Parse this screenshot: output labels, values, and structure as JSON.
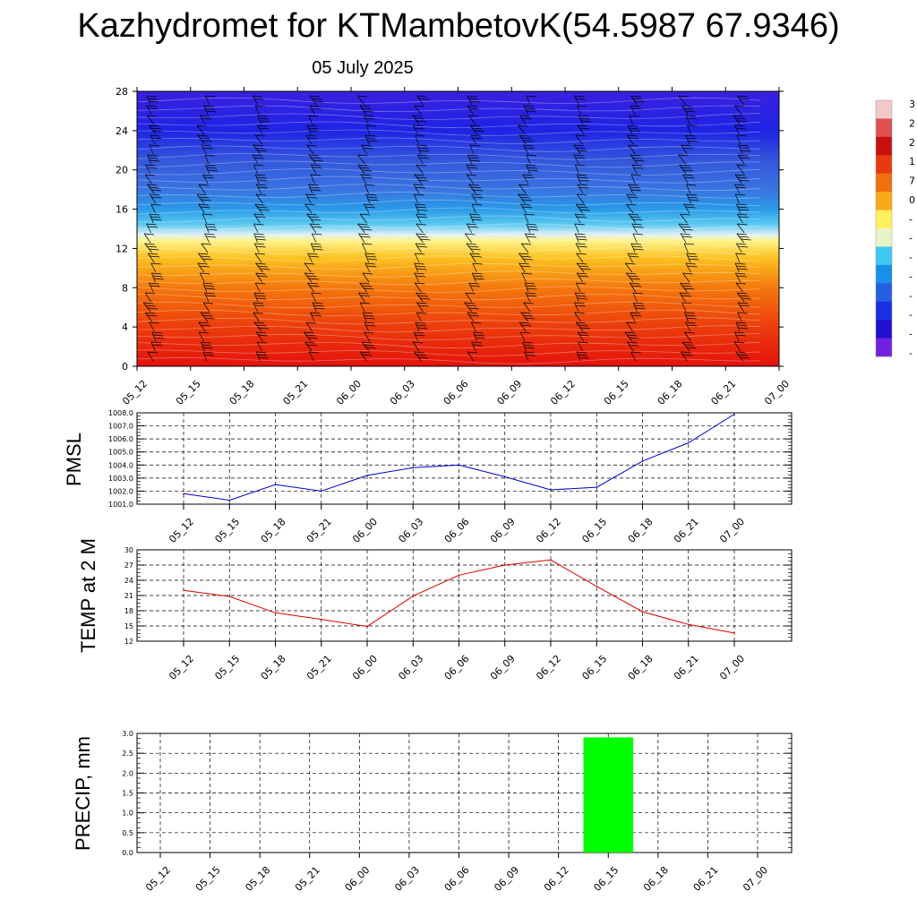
{
  "header": {
    "title": "Kazhydromet for KTMambetovK(54.5987 67.9346)",
    "date": "05 July 2025"
  },
  "chart_data": [
    {
      "type": "heatmap",
      "yticks": [
        0,
        4,
        8,
        12,
        16,
        20,
        24,
        28
      ],
      "ylim": [
        0,
        28
      ],
      "xtick_labels": [
        "05_12",
        "05_15",
        "05_18",
        "05_21",
        "06_00",
        "06_03",
        "06_06",
        "06_09",
        "06_12",
        "06_15",
        "06_18",
        "06_21",
        "07_00"
      ],
      "colorbar_labels": [
        "3",
        "2",
        "2",
        "1",
        "7",
        "0",
        "-",
        "-",
        "-",
        "-",
        "-",
        "-",
        "-",
        "-"
      ],
      "colorbar_colors": [
        "#f3c8c8",
        "#e05050",
        "#c81010",
        "#e83a10",
        "#f07010",
        "#f8a818",
        "#fff060",
        "#e8f4c8",
        "#40c8f0",
        "#1890e8",
        "#2460e0",
        "#1830e0",
        "#2010d0",
        "#7020e0"
      ],
      "layers": [
        {
          "y": 0,
          "color": "#e4120c"
        },
        {
          "y": 4,
          "color": "#ec3c0c"
        },
        {
          "y": 8,
          "color": "#f4780c"
        },
        {
          "y": 11,
          "color": "#fcc020"
        },
        {
          "y": 12.8,
          "color": "#fff38a"
        },
        {
          "y": 13.4,
          "color": "#dff0f8"
        },
        {
          "y": 14.5,
          "color": "#58c8f0"
        },
        {
          "y": 16,
          "color": "#2a9ae8"
        },
        {
          "y": 18,
          "color": "#3a74e0"
        },
        {
          "y": 21,
          "color": "#3456dc"
        },
        {
          "y": 24,
          "color": "#1e24e4"
        },
        {
          "y": 28,
          "color": "#3a20e0"
        }
      ]
    },
    {
      "type": "line",
      "ylabel": "PMSL",
      "ylim": [
        1001.0,
        1008.0
      ],
      "yticks": [
        "1001.0",
        "1002.0",
        "1003.0",
        "1004.0",
        "1005.0",
        "1006.0",
        "1007.0",
        "1008.0"
      ],
      "categories": [
        "05_12",
        "05_15",
        "05_18",
        "05_21",
        "06_00",
        "06_03",
        "06_06",
        "06_09",
        "06_12",
        "06_15",
        "06_18",
        "06_21",
        "07_00"
      ],
      "values": [
        1001.8,
        1001.3,
        1002.5,
        1002.0,
        1003.2,
        1003.8,
        1004.0,
        1003.1,
        1002.1,
        1002.3,
        1004.3,
        1005.7,
        1007.9
      ],
      "color": "#0000cc"
    },
    {
      "type": "line",
      "ylabel": "TEMP at 2 M",
      "ylim": [
        12,
        30
      ],
      "yticks": [
        "12",
        "15",
        "18",
        "21",
        "24",
        "27",
        "30"
      ],
      "categories": [
        "05_12",
        "05_15",
        "05_18",
        "05_21",
        "06_00",
        "06_03",
        "06_06",
        "06_09",
        "06_12",
        "06_15",
        "06_18",
        "06_21",
        "07_00"
      ],
      "values": [
        22.0,
        20.8,
        17.6,
        16.3,
        14.9,
        20.9,
        25.0,
        27.0,
        28.0,
        22.8,
        17.8,
        15.3,
        13.6
      ],
      "color": "#e00000"
    },
    {
      "type": "bar",
      "ylabel": "PRECIP, mm",
      "ylim": [
        0.0,
        3.0
      ],
      "yticks": [
        "0.0",
        "0.5",
        "1.0",
        "1.5",
        "2.0",
        "2.5",
        "3.0"
      ],
      "categories": [
        "05_12",
        "05_15",
        "05_18",
        "05_21",
        "06_00",
        "06_03",
        "06_06",
        "06_09",
        "06_12",
        "06_15",
        "06_18",
        "06_21",
        "07_00"
      ],
      "values": [
        0,
        0,
        0,
        0,
        0,
        0,
        0,
        0,
        0,
        2.9,
        0,
        0,
        0
      ],
      "color": "#00ff00"
    }
  ]
}
